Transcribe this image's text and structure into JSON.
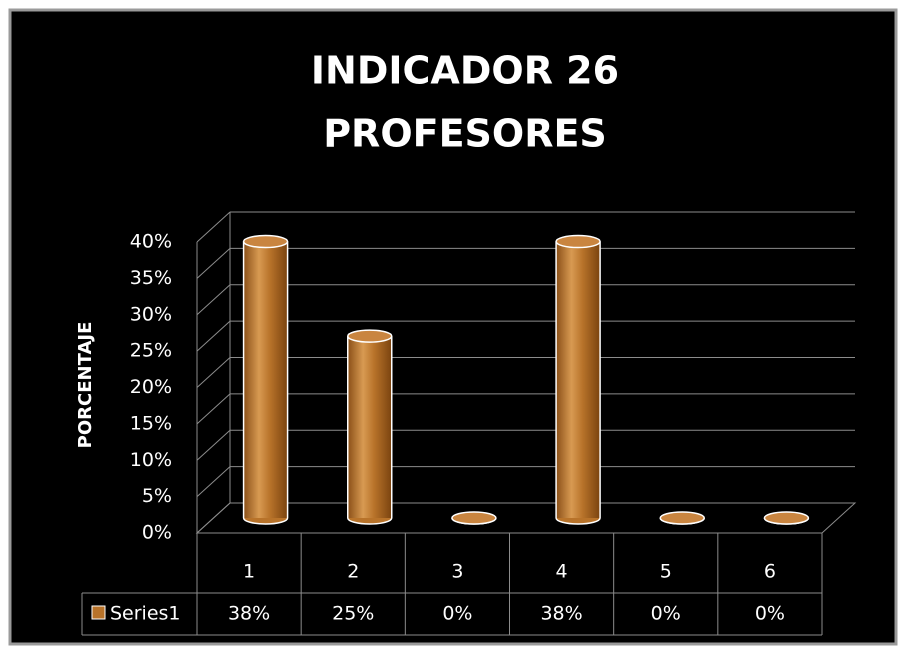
{
  "chart_data": {
    "type": "bar3d",
    "title": "INDICADOR 26",
    "subtitle": "PROFESORES",
    "y_label": "PORCENTAJE",
    "categories": [
      "1",
      "2",
      "3",
      "4",
      "5",
      "6"
    ],
    "series": [
      {
        "name": "Series1",
        "color": "#b8732a",
        "values": [
          38,
          25,
          0,
          38,
          0,
          0
        ],
        "value_labels": [
          "38%",
          "25%",
          "0%",
          "38%",
          "0%",
          "0%"
        ]
      }
    ],
    "ylim": [
      0,
      40
    ],
    "yticks": [
      {
        "value": 0,
        "label": "0%"
      },
      {
        "value": 5,
        "label": "5%"
      },
      {
        "value": 10,
        "label": "10%"
      },
      {
        "value": 15,
        "label": "15%"
      },
      {
        "value": 20,
        "label": "20%"
      },
      {
        "value": 25,
        "label": "25%"
      },
      {
        "value": 30,
        "label": "30%"
      },
      {
        "value": 35,
        "label": "35%"
      },
      {
        "value": 40,
        "label": "40%"
      }
    ],
    "grid": true,
    "data_table": true
  }
}
